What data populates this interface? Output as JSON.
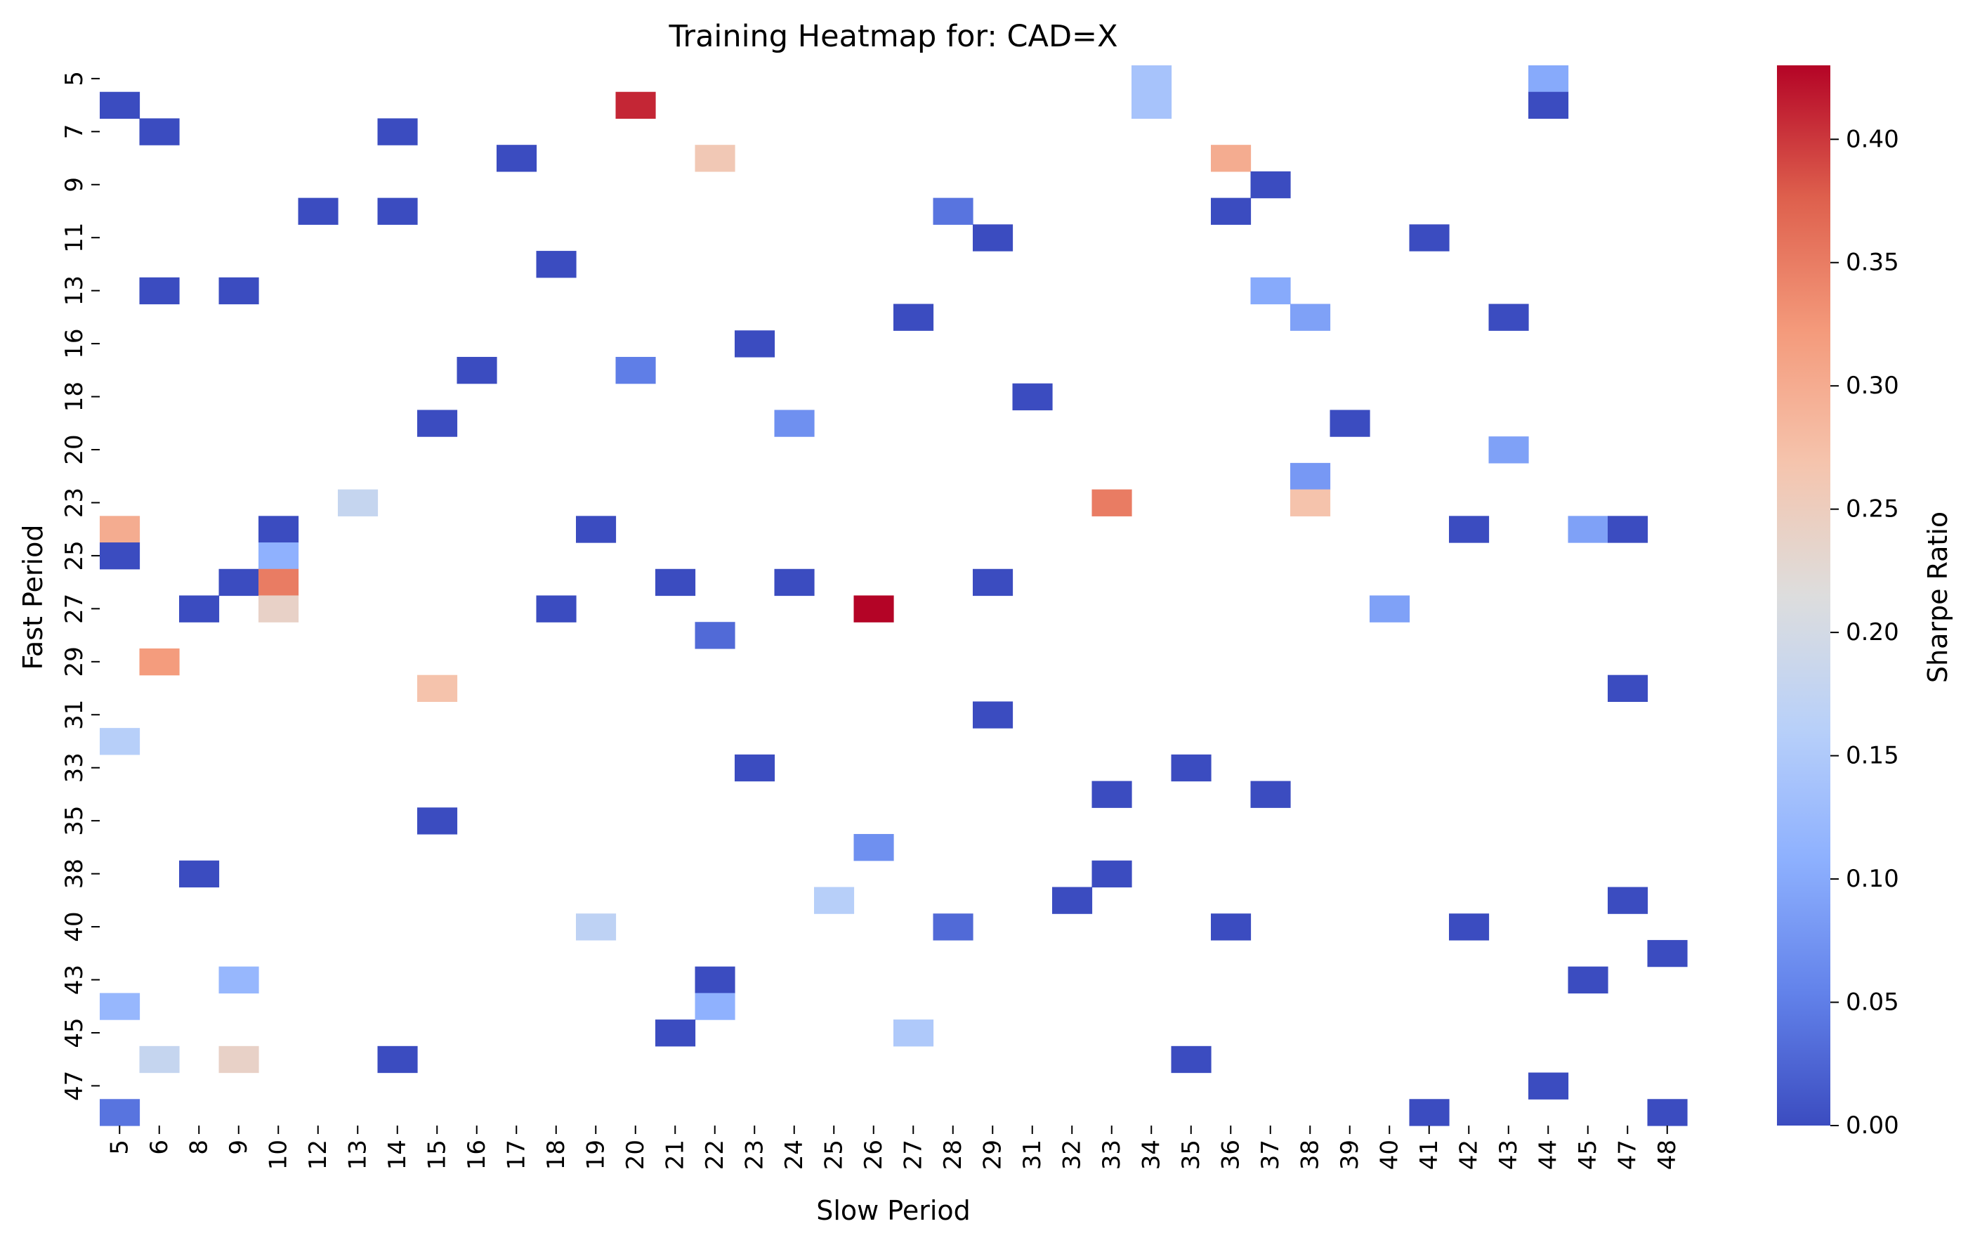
{
  "chart_data": {
    "type": "heatmap",
    "title": "Training Heatmap for: CAD=X",
    "xlabel": "Slow Period",
    "ylabel": "Fast Period",
    "colorbar_label": "Sharpe Ratio",
    "colormap": "coolwarm",
    "color_range": [
      0.0,
      0.43
    ],
    "colorbar_ticks": [
      0.0,
      0.05,
      0.1,
      0.15,
      0.2,
      0.25,
      0.3,
      0.35,
      0.4
    ],
    "colorbar_tick_labels": [
      "0.00",
      "0.05",
      "0.10",
      "0.15",
      "0.20",
      "0.25",
      "0.30",
      "0.35",
      "0.40"
    ],
    "x_categories": [
      "5",
      "6",
      "8",
      "9",
      "10",
      "12",
      "13",
      "14",
      "15",
      "16",
      "17",
      "18",
      "19",
      "20",
      "21",
      "22",
      "23",
      "24",
      "25",
      "26",
      "27",
      "28",
      "29",
      "31",
      "32",
      "33",
      "34",
      "35",
      "36",
      "37",
      "38",
      "39",
      "40",
      "41",
      "42",
      "43",
      "44",
      "45",
      "47",
      "48"
    ],
    "y_categories": [
      "5",
      "6",
      "7",
      "8",
      "9",
      "10",
      "11",
      "12",
      "13",
      "14",
      "16",
      "17",
      "18",
      "19",
      "20",
      "22",
      "23",
      "24",
      "25",
      "26",
      "27",
      "28",
      "29",
      "30",
      "31",
      "32",
      "33",
      "34",
      "35",
      "36",
      "38",
      "39",
      "40",
      "41",
      "43",
      "44",
      "45",
      "46",
      "47",
      "48"
    ],
    "y_tick_labels": [
      "5",
      "7",
      "9",
      "11",
      "13",
      "16",
      "18",
      "20",
      "23",
      "25",
      "27",
      "29",
      "31",
      "33",
      "35",
      "38",
      "40",
      "43",
      "45",
      "47"
    ],
    "cells": [
      {
        "x": "34",
        "y": "5",
        "value": 0.14
      },
      {
        "x": "44",
        "y": "5",
        "value": 0.1
      },
      {
        "x": "5",
        "y": "6",
        "value": 0.0
      },
      {
        "x": "20",
        "y": "6",
        "value": 0.41
      },
      {
        "x": "34",
        "y": "6",
        "value": 0.14
      },
      {
        "x": "44",
        "y": "6",
        "value": 0.0
      },
      {
        "x": "6",
        "y": "7",
        "value": 0.0
      },
      {
        "x": "14",
        "y": "7",
        "value": 0.0
      },
      {
        "x": "17",
        "y": "8",
        "value": 0.0
      },
      {
        "x": "22",
        "y": "8",
        "value": 0.26
      },
      {
        "x": "36",
        "y": "8",
        "value": 0.3
      },
      {
        "x": "37",
        "y": "9",
        "value": 0.0
      },
      {
        "x": "12",
        "y": "10",
        "value": 0.0
      },
      {
        "x": "14",
        "y": "10",
        "value": 0.0
      },
      {
        "x": "28",
        "y": "10",
        "value": 0.04
      },
      {
        "x": "36",
        "y": "10",
        "value": 0.0
      },
      {
        "x": "29",
        "y": "11",
        "value": 0.0
      },
      {
        "x": "41",
        "y": "11",
        "value": 0.0
      },
      {
        "x": "18",
        "y": "12",
        "value": 0.0
      },
      {
        "x": "6",
        "y": "13",
        "value": 0.0
      },
      {
        "x": "9",
        "y": "13",
        "value": 0.0
      },
      {
        "x": "37",
        "y": "13",
        "value": 0.1
      },
      {
        "x": "27",
        "y": "14",
        "value": 0.0
      },
      {
        "x": "38",
        "y": "14",
        "value": 0.09
      },
      {
        "x": "43",
        "y": "14",
        "value": 0.0
      },
      {
        "x": "23",
        "y": "16",
        "value": 0.0
      },
      {
        "x": "16",
        "y": "17",
        "value": 0.0
      },
      {
        "x": "20",
        "y": "17",
        "value": 0.05
      },
      {
        "x": "31",
        "y": "18",
        "value": 0.0
      },
      {
        "x": "15",
        "y": "19",
        "value": 0.0
      },
      {
        "x": "24",
        "y": "19",
        "value": 0.07
      },
      {
        "x": "39",
        "y": "19",
        "value": 0.0
      },
      {
        "x": "43",
        "y": "20",
        "value": 0.09
      },
      {
        "x": "38",
        "y": "22",
        "value": 0.08
      },
      {
        "x": "13",
        "y": "23",
        "value": 0.18
      },
      {
        "x": "33",
        "y": "23",
        "value": 0.35
      },
      {
        "x": "38",
        "y": "23",
        "value": 0.27
      },
      {
        "x": "5",
        "y": "24",
        "value": 0.3
      },
      {
        "x": "10",
        "y": "24",
        "value": 0.0
      },
      {
        "x": "19",
        "y": "24",
        "value": 0.0
      },
      {
        "x": "42",
        "y": "24",
        "value": 0.0
      },
      {
        "x": "45",
        "y": "24",
        "value": 0.09
      },
      {
        "x": "47",
        "y": "24",
        "value": 0.0
      },
      {
        "x": "5",
        "y": "25",
        "value": 0.0
      },
      {
        "x": "10",
        "y": "25",
        "value": 0.11
      },
      {
        "x": "9",
        "y": "26",
        "value": 0.0
      },
      {
        "x": "10",
        "y": "26",
        "value": 0.35
      },
      {
        "x": "21",
        "y": "26",
        "value": 0.0
      },
      {
        "x": "24",
        "y": "26",
        "value": 0.0
      },
      {
        "x": "29",
        "y": "26",
        "value": 0.0
      },
      {
        "x": "8",
        "y": "27",
        "value": 0.0
      },
      {
        "x": "10",
        "y": "27",
        "value": 0.24
      },
      {
        "x": "18",
        "y": "27",
        "value": 0.0
      },
      {
        "x": "26",
        "y": "27",
        "value": 0.43
      },
      {
        "x": "40",
        "y": "27",
        "value": 0.09
      },
      {
        "x": "22",
        "y": "28",
        "value": 0.03
      },
      {
        "x": "6",
        "y": "29",
        "value": 0.32
      },
      {
        "x": "15",
        "y": "30",
        "value": 0.27
      },
      {
        "x": "47",
        "y": "30",
        "value": 0.0
      },
      {
        "x": "29",
        "y": "31",
        "value": 0.0
      },
      {
        "x": "5",
        "y": "32",
        "value": 0.16
      },
      {
        "x": "23",
        "y": "33",
        "value": 0.0
      },
      {
        "x": "35",
        "y": "33",
        "value": 0.0
      },
      {
        "x": "33",
        "y": "34",
        "value": 0.0
      },
      {
        "x": "37",
        "y": "34",
        "value": 0.0
      },
      {
        "x": "15",
        "y": "35",
        "value": 0.0
      },
      {
        "x": "26",
        "y": "36",
        "value": 0.07
      },
      {
        "x": "8",
        "y": "38",
        "value": 0.0
      },
      {
        "x": "33",
        "y": "38",
        "value": 0.0
      },
      {
        "x": "25",
        "y": "39",
        "value": 0.16
      },
      {
        "x": "32",
        "y": "39",
        "value": 0.0
      },
      {
        "x": "47",
        "y": "39",
        "value": 0.0
      },
      {
        "x": "19",
        "y": "40",
        "value": 0.17
      },
      {
        "x": "28",
        "y": "40",
        "value": 0.03
      },
      {
        "x": "36",
        "y": "40",
        "value": 0.0
      },
      {
        "x": "42",
        "y": "40",
        "value": 0.0
      },
      {
        "x": "48",
        "y": "41",
        "value": 0.0
      },
      {
        "x": "9",
        "y": "43",
        "value": 0.12
      },
      {
        "x": "22",
        "y": "43",
        "value": 0.0
      },
      {
        "x": "45",
        "y": "43",
        "value": 0.0
      },
      {
        "x": "5",
        "y": "44",
        "value": 0.12
      },
      {
        "x": "22",
        "y": "44",
        "value": 0.11
      },
      {
        "x": "21",
        "y": "45",
        "value": 0.0
      },
      {
        "x": "27",
        "y": "45",
        "value": 0.15
      },
      {
        "x": "6",
        "y": "46",
        "value": 0.18
      },
      {
        "x": "9",
        "y": "46",
        "value": 0.24
      },
      {
        "x": "14",
        "y": "46",
        "value": 0.0
      },
      {
        "x": "35",
        "y": "46",
        "value": 0.0
      },
      {
        "x": "44",
        "y": "47",
        "value": 0.0
      },
      {
        "x": "5",
        "y": "48",
        "value": 0.04
      },
      {
        "x": "41",
        "y": "48",
        "value": 0.0
      },
      {
        "x": "48",
        "y": "48",
        "value": 0.0
      }
    ]
  }
}
